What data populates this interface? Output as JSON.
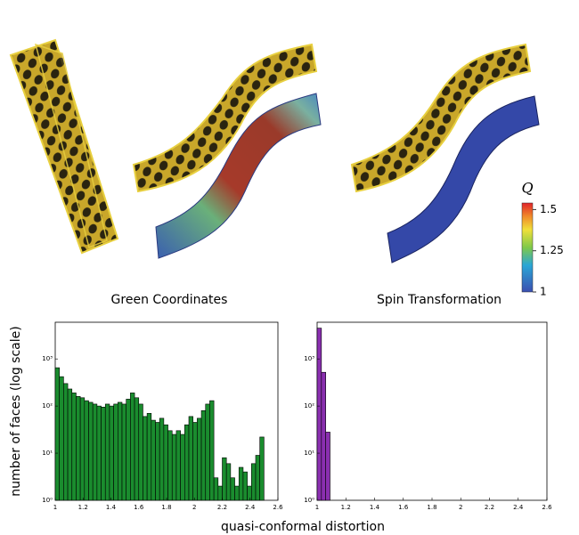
{
  "captions": [
    "Green Coordinates",
    "Spin Transformation"
  ],
  "colorbar": {
    "label": "Q",
    "clim": [
      1,
      1.54
    ],
    "ticks": [
      1.5,
      1.25,
      1
    ]
  },
  "shared_axes": {
    "ylabel": "number of faces (log scale)",
    "xlabel": "quasi-conformal distortion"
  },
  "chart_data": [
    {
      "type": "histogram",
      "color": "#1a8c2e",
      "log_y": true,
      "bins": [
        1,
        1.03,
        1.06,
        1.09,
        1.12,
        1.15,
        1.18,
        1.21,
        1.24,
        1.27,
        1.3,
        1.33,
        1.36,
        1.39,
        1.42,
        1.45,
        1.48,
        1.51,
        1.54,
        1.57,
        1.6,
        1.63,
        1.66,
        1.69,
        1.72,
        1.75,
        1.78,
        1.81,
        1.84,
        1.87,
        1.9,
        1.93,
        1.96,
        1.99,
        2.02,
        2.05,
        2.08,
        2.11,
        2.14,
        2.17,
        2.2,
        2.23,
        2.26,
        2.29,
        2.32,
        2.35,
        2.38,
        2.41,
        2.44,
        2.47,
        2.5
      ],
      "values": [
        650,
        420,
        300,
        230,
        190,
        160,
        150,
        130,
        120,
        110,
        100,
        95,
        110,
        100,
        110,
        120,
        110,
        140,
        190,
        150,
        110,
        60,
        70,
        50,
        45,
        55,
        40,
        30,
        25,
        30,
        25,
        40,
        60,
        45,
        55,
        80,
        110,
        130,
        3,
        2,
        8,
        6,
        3,
        2,
        5,
        4,
        2,
        6,
        9,
        22
      ],
      "xlim": [
        1,
        2.6
      ],
      "xticks": [
        1,
        1.2,
        1.4,
        1.6,
        1.8,
        2,
        2.2,
        2.4,
        2.6
      ],
      "ylim": [
        1,
        6000
      ],
      "yticks": [
        {
          "value": 1,
          "label": "10⁰"
        },
        {
          "value": 10,
          "label": "10¹"
        },
        {
          "value": 100,
          "label": "10²"
        },
        {
          "value": 1000,
          "label": "10³"
        }
      ]
    },
    {
      "type": "histogram",
      "color": "#8a2fb0",
      "log_y": true,
      "bins": [
        1,
        1.03,
        1.06,
        1.09
      ],
      "values": [
        4500,
        520,
        28
      ],
      "xlim": [
        1,
        2.6
      ],
      "xticks": [
        1,
        1.2,
        1.4,
        1.6,
        1.8,
        2,
        2.2,
        2.4,
        2.6
      ],
      "ylim": [
        1,
        6000
      ],
      "yticks": [
        {
          "value": 1,
          "label": "10⁰"
        },
        {
          "value": 10,
          "label": "10¹"
        },
        {
          "value": 100,
          "label": "10²"
        },
        {
          "value": 1000,
          "label": "10³"
        }
      ]
    }
  ]
}
